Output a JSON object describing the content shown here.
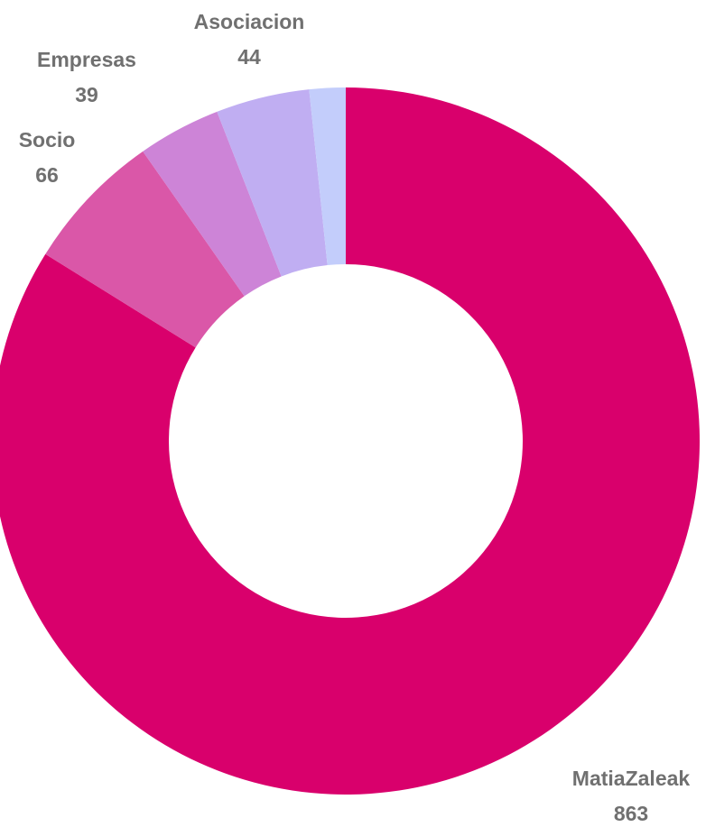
{
  "chart_data": {
    "type": "donut",
    "title": "",
    "slices": [
      {
        "label": "MatiaZaleak",
        "value": 863,
        "color": "#d9006c"
      },
      {
        "label": "Socio",
        "value": 66,
        "color": "#da57a8"
      },
      {
        "label": "Empresas",
        "value": 39,
        "color": "#cd84d7"
      },
      {
        "label": "Asociacion",
        "value": 44,
        "color": "#c0aef2"
      },
      {
        "label": "",
        "value": 17,
        "color": "#c3cdfb"
      }
    ],
    "start_angle": "top",
    "direction": "clockwise",
    "legend": "none"
  }
}
